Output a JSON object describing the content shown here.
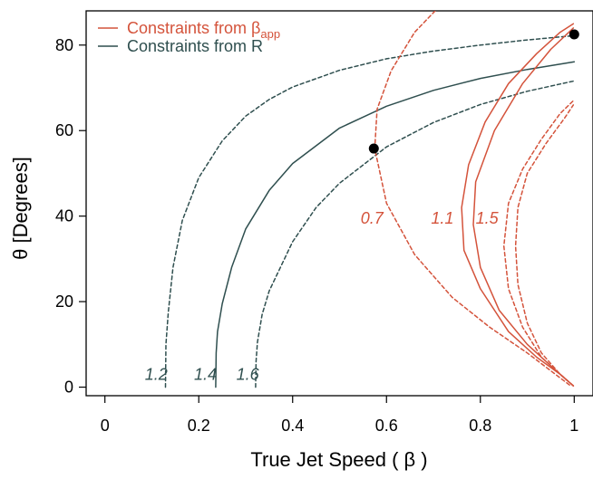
{
  "chart_data": {
    "type": "line",
    "xlabel": "True Jet Speed ( β )",
    "ylabel": "θ  [Degrees]",
    "xlim": [
      -0.04,
      1.04
    ],
    "ylim": [
      -2,
      88
    ],
    "xticks": [
      "0",
      "0.2",
      "0.4",
      "0.6",
      "0.8",
      "1"
    ],
    "yticks": [
      "0",
      "20",
      "40",
      "60",
      "80"
    ],
    "grid": false,
    "legend_position": "top-left",
    "colors": {
      "beta_app": "#d4533b",
      "R": "#2f4f4f"
    },
    "legend": [
      {
        "group": "beta_app",
        "text": "Constraints from β",
        "subscript": "app"
      },
      {
        "group": "R",
        "text": "Constraints from R",
        "subscript": ""
      }
    ],
    "series": [
      {
        "group": "R",
        "param": 1.2,
        "label": "1.2",
        "style": "dashed",
        "x": [
          0.129,
          0.13,
          0.135,
          0.145,
          0.165,
          0.2,
          0.25,
          0.3,
          0.35,
          0.4,
          0.5,
          0.6,
          0.7,
          0.8,
          0.9,
          1.0
        ],
        "y": [
          0,
          10,
          17.5,
          28,
          39,
          49,
          57.6,
          63.4,
          67.3,
          70.2,
          74.1,
          76.8,
          78.6,
          80.0,
          81.2,
          82.2
        ]
      },
      {
        "group": "R",
        "param": 1.4,
        "label": "1.4",
        "style": "solid",
        "x": [
          0.236,
          0.237,
          0.24,
          0.25,
          0.27,
          0.3,
          0.35,
          0.4,
          0.5,
          0.6,
          0.7,
          0.8,
          0.9,
          1.0
        ],
        "y": [
          0,
          8,
          13,
          19.5,
          28,
          37,
          46,
          52.3,
          60.6,
          65.7,
          69.4,
          72.2,
          74.3,
          76.1
        ]
      },
      {
        "group": "R",
        "param": 1.6,
        "label": "1.6",
        "style": "dashed",
        "x": [
          0.321,
          0.322,
          0.325,
          0.335,
          0.35,
          0.4,
          0.45,
          0.5,
          0.6,
          0.7,
          0.8,
          0.9,
          1.0
        ],
        "y": [
          0,
          6,
          10.5,
          17,
          22.5,
          34,
          42,
          47.7,
          56.2,
          61.9,
          66.1,
          69.2,
          71.6
        ]
      },
      {
        "group": "beta_app",
        "param": 0.7,
        "label": "0.7",
        "style": "dashed",
        "x": [
          0.99,
          0.96,
          0.9,
          0.82,
          0.74,
          0.66,
          0.6,
          0.575,
          0.58,
          0.61,
          0.66,
          0.73,
          0.82
        ],
        "y": [
          0.5,
          3,
          8,
          14,
          21,
          31,
          43,
          55.8,
          65,
          74,
          83,
          91,
          99
        ]
      },
      {
        "group": "beta_app",
        "param": 1.1,
        "label": "1.1",
        "style": "solid",
        "x": [
          0.998,
          0.97,
          0.92,
          0.86,
          0.8,
          0.765,
          0.76,
          0.775,
          0.81,
          0.86,
          0.92,
          0.97,
          0.998
        ],
        "y": [
          0.3,
          3,
          7,
          13,
          23,
          32,
          42,
          52,
          62,
          71,
          78,
          83,
          85
        ]
      },
      {
        "group": "beta_app",
        "param": 1.5,
        "label": "1.5",
        "style": "dashed",
        "x": [
          0.998,
          0.97,
          0.93,
          0.89,
          0.86,
          0.85,
          0.86,
          0.89,
          0.93,
          0.97,
          0.998
        ],
        "y": [
          0.3,
          3,
          7,
          14,
          23,
          33,
          43,
          51,
          58,
          64,
          67
        ]
      },
      {
        "group": "beta_app",
        "param": 1.1,
        "label": "",
        "style": "solid",
        "x": [
          0.998,
          0.96,
          0.9,
          0.84,
          0.8,
          0.785,
          0.79,
          0.83,
          0.89,
          0.95,
          0.998
        ],
        "y": [
          0.3,
          4,
          10,
          18,
          28,
          38,
          48,
          60,
          71,
          79,
          84
        ]
      },
      {
        "group": "beta_app",
        "param": 1.5,
        "label": "",
        "style": "dashed",
        "x": [
          0.998,
          0.97,
          0.93,
          0.9,
          0.88,
          0.875,
          0.88,
          0.9,
          0.94,
          0.98,
          0.998
        ],
        "y": [
          0.3,
          3,
          8,
          15,
          24,
          33,
          42,
          50,
          57,
          63,
          66
        ]
      }
    ],
    "points": [
      {
        "x": 0.573,
        "y": 55.8
      },
      {
        "x": 1.0,
        "y": 82.5
      }
    ],
    "curve_labels": [
      {
        "text": "1.2",
        "group": "R",
        "x": 0.085,
        "y": 3
      },
      {
        "text": "1.4",
        "group": "R",
        "x": 0.19,
        "y": 3
      },
      {
        "text": "1.6",
        "group": "R",
        "x": 0.28,
        "y": 3
      },
      {
        "text": "0.7",
        "group": "beta_app",
        "x": 0.545,
        "y": 39.5
      },
      {
        "text": "1.1",
        "group": "beta_app",
        "x": 0.695,
        "y": 39.5
      },
      {
        "text": "1.5",
        "group": "beta_app",
        "x": 0.79,
        "y": 39.5
      }
    ]
  }
}
